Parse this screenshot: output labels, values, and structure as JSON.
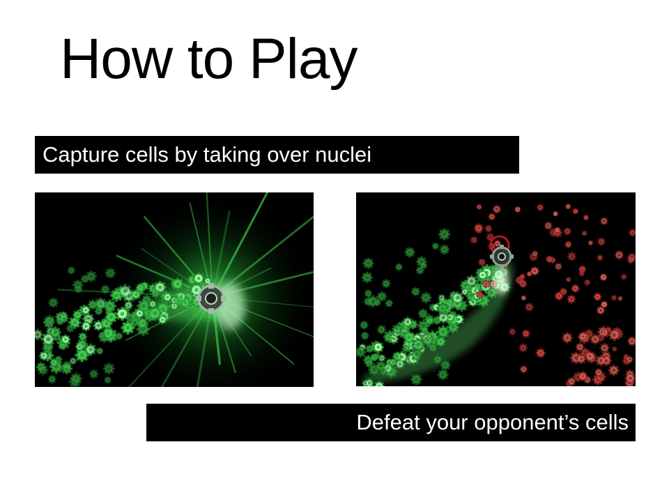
{
  "slide": {
    "title": "How to Play"
  },
  "captions": {
    "capture": "Capture cells by taking over nuclei",
    "defeat": "Defeat your opponent’s cells"
  },
  "colors": {
    "background": "#ffffff",
    "banner": "#000000",
    "banner_text": "#ffffff",
    "player_cells": "#3fcf4f",
    "opponent_cells": "#c8463e",
    "nucleus_ring": "#b01818"
  },
  "screens": {
    "capture_icon": "green-nucleus-icon",
    "defeat_icon": "red-nucleus-icon"
  }
}
